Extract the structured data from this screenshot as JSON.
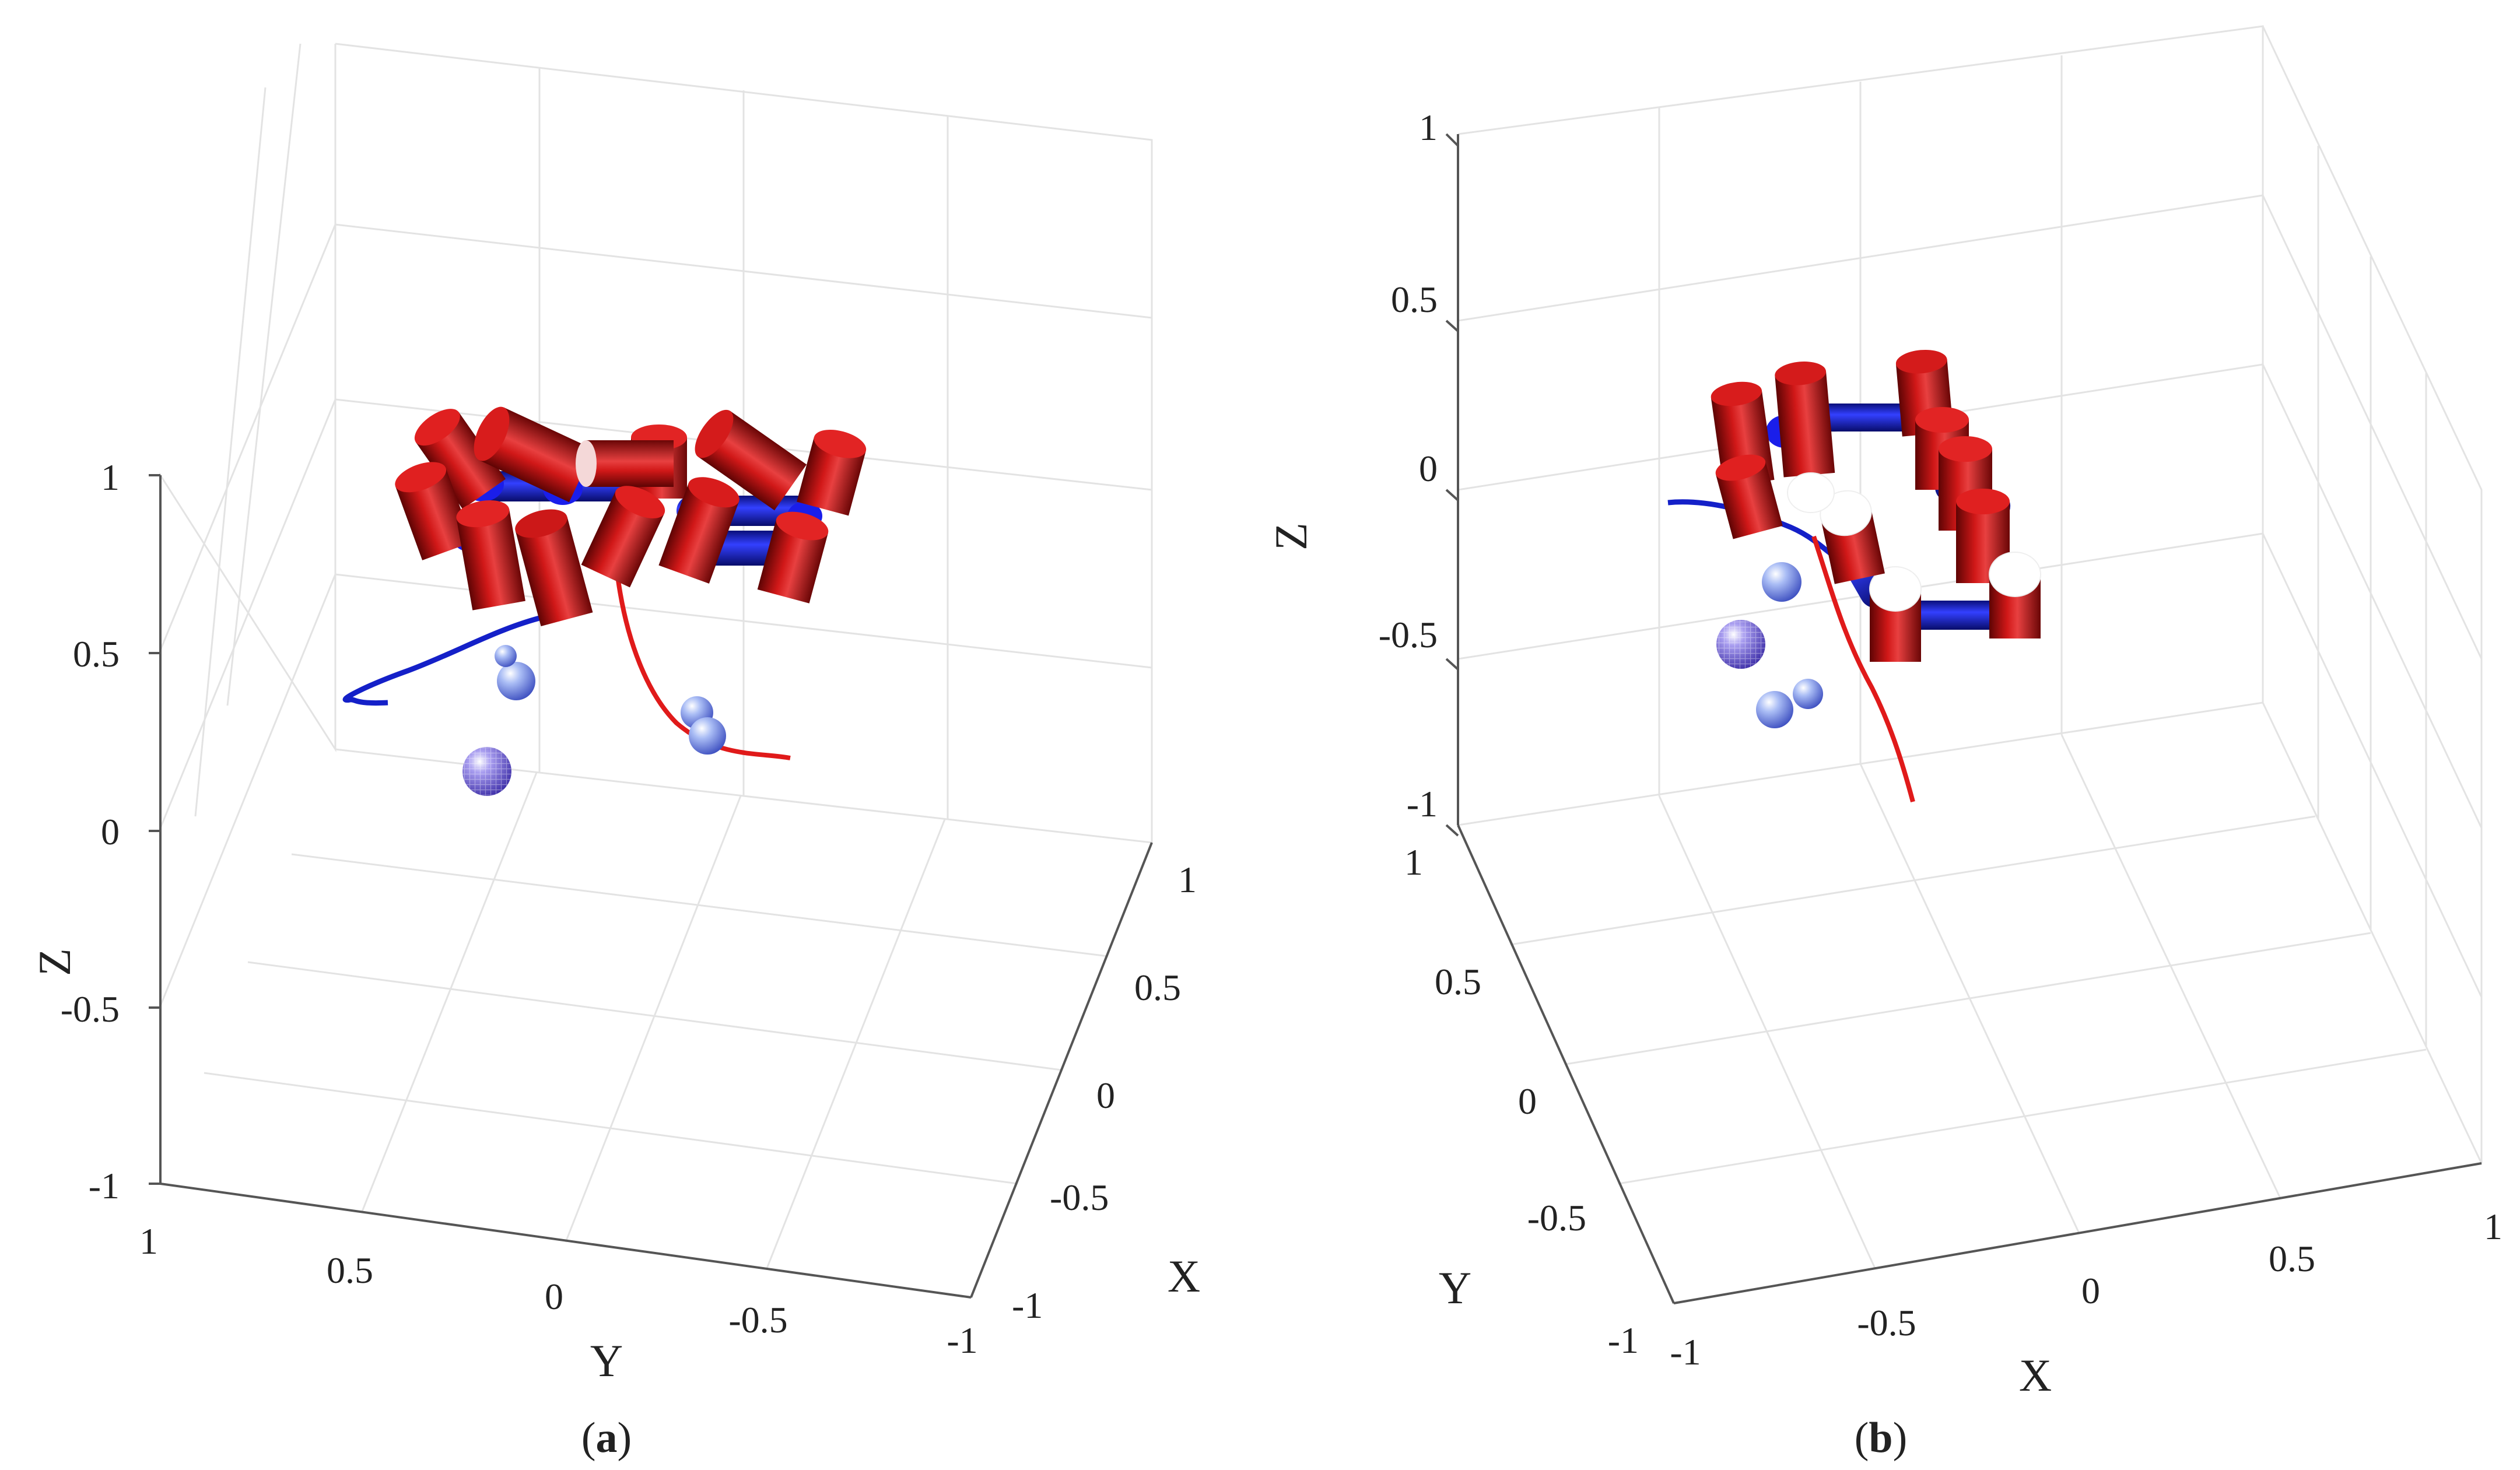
{
  "panels": [
    {
      "id": "a",
      "caption_letter": "a",
      "z_ticks": [
        "1",
        "0.5",
        "0",
        "-0.5",
        "-1"
      ],
      "x_ticks": [
        "1",
        "0.5",
        "0",
        "-0.5",
        "-1"
      ],
      "y_ticks": [
        "1",
        "0.5",
        "0",
        "-0.5",
        "-1"
      ],
      "xlabel": "X",
      "ylabel": "Y",
      "zlabel": "Z"
    },
    {
      "id": "b",
      "caption_letter": "b",
      "z_ticks": [
        "1",
        "0.5",
        "0",
        "-0.5",
        "-1"
      ],
      "x_ticks": [
        "-1",
        "-0.5",
        "0",
        "0.5",
        "1"
      ],
      "y_ticks": [
        "1",
        "0.5",
        "0",
        "-0.5",
        "-1"
      ],
      "xlabel": "X",
      "ylabel": "Y",
      "zlabel": "Z"
    }
  ],
  "colors": {
    "cylinder": "#b80d0d",
    "connector": "#1420c8",
    "sphere": "#8fa8ee",
    "sphere_large": "#6f62d6",
    "trajectory_1": "#1420c8",
    "trajectory_2": "#e01a1a",
    "grid": "#e3e3e3",
    "axis": "#555555"
  },
  "icons": {
    "red_cylinder": "cylinder-icon",
    "blue_connector": "connector-rod-icon",
    "sphere": "sphere-icon"
  }
}
